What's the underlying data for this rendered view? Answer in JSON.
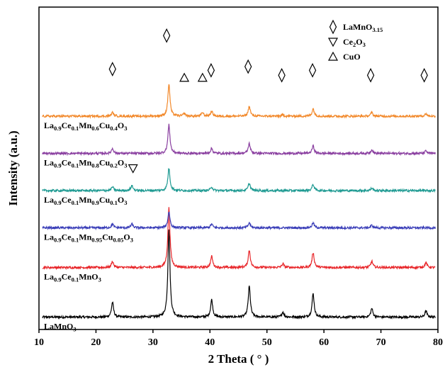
{
  "chart_data": {
    "type": "line",
    "xlabel": "2 Theta ( ° )",
    "ylabel": "Intensity (a.u.)",
    "xlim": [
      10,
      80
    ],
    "xticks": [
      "10",
      "20",
      "30",
      "40",
      "50",
      "60",
      "70",
      "80"
    ],
    "legend": [
      {
        "symbol": "diamond",
        "label": "LaMnO3.15"
      },
      {
        "symbol": "triangle-down",
        "label": "Ce2O3"
      },
      {
        "symbol": "triangle-up",
        "label": "CuO"
      }
    ],
    "series": [
      {
        "name": "LaMnO3",
        "label_parts": [
          {
            "t": "LaMnO",
            "sub": false
          },
          {
            "t": "3",
            "sub": true
          }
        ],
        "color": "#000000",
        "baseline": 1.0,
        "peaks": [
          {
            "x": 22.9,
            "h": 1.2
          },
          {
            "x": 32.8,
            "h": 7.0
          },
          {
            "x": 40.3,
            "h": 1.4
          },
          {
            "x": 46.9,
            "h": 2.5
          },
          {
            "x": 52.8,
            "h": 0.4
          },
          {
            "x": 58.1,
            "h": 1.9
          },
          {
            "x": 68.4,
            "h": 0.7
          },
          {
            "x": 77.9,
            "h": 0.5
          }
        ]
      },
      {
        "name": "La0.9Ce0.1MnO3",
        "label_parts": [
          {
            "t": "La",
            "sub": false
          },
          {
            "t": "0.9",
            "sub": true
          },
          {
            "t": "Ce",
            "sub": false
          },
          {
            "t": "0.1",
            "sub": true
          },
          {
            "t": "MnO",
            "sub": false
          },
          {
            "t": "3",
            "sub": true
          }
        ],
        "color": "#e8262a",
        "baseline": 5.0,
        "peaks": [
          {
            "x": 22.9,
            "h": 0.5
          },
          {
            "x": 32.8,
            "h": 4.8
          },
          {
            "x": 40.3,
            "h": 0.9
          },
          {
            "x": 46.9,
            "h": 1.4
          },
          {
            "x": 52.8,
            "h": 0.3
          },
          {
            "x": 58.1,
            "h": 1.2
          },
          {
            "x": 68.4,
            "h": 0.5
          },
          {
            "x": 77.9,
            "h": 0.4
          }
        ]
      },
      {
        "name": "La0.9Ce0.1Mn0.95Cu0.05O3",
        "label_parts": [
          {
            "t": "La",
            "sub": false
          },
          {
            "t": "0.9",
            "sub": true
          },
          {
            "t": "Ce",
            "sub": false
          },
          {
            "t": "0.1",
            "sub": true
          },
          {
            "t": "Mn",
            "sub": false
          },
          {
            "t": "0.95",
            "sub": true
          },
          {
            "t": "Cu",
            "sub": false
          },
          {
            "t": "0.05",
            "sub": true
          },
          {
            "t": "O",
            "sub": false
          },
          {
            "t": "3",
            "sub": true
          }
        ],
        "color": "#3a3eb8",
        "baseline": 8.2,
        "peaks": [
          {
            "x": 22.9,
            "h": 0.3
          },
          {
            "x": 26.3,
            "h": 0.3
          },
          {
            "x": 32.8,
            "h": 1.3
          },
          {
            "x": 40.3,
            "h": 0.3
          },
          {
            "x": 46.9,
            "h": 0.4
          },
          {
            "x": 58.1,
            "h": 0.4
          },
          {
            "x": 68.4,
            "h": 0.2
          }
        ]
      },
      {
        "name": "La0.9Ce0.1Mn0.9Cu0.1O3",
        "label_parts": [
          {
            "t": "La",
            "sub": false
          },
          {
            "t": "0.9",
            "sub": true
          },
          {
            "t": "Ce",
            "sub": false
          },
          {
            "t": "0.1",
            "sub": true
          },
          {
            "t": "Mn",
            "sub": false
          },
          {
            "t": "0.9",
            "sub": true
          },
          {
            "t": "Cu",
            "sub": false
          },
          {
            "t": "0.1",
            "sub": true
          },
          {
            "t": "O",
            "sub": false
          },
          {
            "t": "3",
            "sub": true
          }
        ],
        "color": "#1e9a92",
        "baseline": 11.2,
        "peaks": [
          {
            "x": 22.9,
            "h": 0.3
          },
          {
            "x": 26.3,
            "h": 0.4
          },
          {
            "x": 32.8,
            "h": 1.8
          },
          {
            "x": 40.3,
            "h": 0.3
          },
          {
            "x": 46.9,
            "h": 0.6
          },
          {
            "x": 58.1,
            "h": 0.5
          },
          {
            "x": 68.4,
            "h": 0.2
          }
        ]
      },
      {
        "name": "La0.9Ce0.1Mn0.8Cu0.2O3",
        "label_parts": [
          {
            "t": "La",
            "sub": false
          },
          {
            "t": "0.9",
            "sub": true
          },
          {
            "t": "Ce",
            "sub": false
          },
          {
            "t": "0.1",
            "sub": true
          },
          {
            "t": "Mn",
            "sub": false
          },
          {
            "t": "0.8",
            "sub": true
          },
          {
            "t": "Cu",
            "sub": false
          },
          {
            "t": "0.2",
            "sub": true
          },
          {
            "t": "O",
            "sub": false
          },
          {
            "t": "3",
            "sub": true
          }
        ],
        "color": "#8a3fa0",
        "baseline": 14.2,
        "peaks": [
          {
            "x": 22.9,
            "h": 0.4
          },
          {
            "x": 32.8,
            "h": 2.3
          },
          {
            "x": 40.3,
            "h": 0.4
          },
          {
            "x": 46.9,
            "h": 0.8
          },
          {
            "x": 58.1,
            "h": 0.6
          },
          {
            "x": 68.4,
            "h": 0.3
          },
          {
            "x": 77.9,
            "h": 0.2
          }
        ]
      },
      {
        "name": "La0.9Ce0.1Mn0.6Cu0.4O3",
        "label_parts": [
          {
            "t": "La",
            "sub": false
          },
          {
            "t": "0.9",
            "sub": true
          },
          {
            "t": "Ce",
            "sub": false
          },
          {
            "t": "0.1",
            "sub": true
          },
          {
            "t": "Mn",
            "sub": false
          },
          {
            "t": "0.6",
            "sub": true
          },
          {
            "t": "Cu",
            "sub": false
          },
          {
            "t": "0.4",
            "sub": true
          },
          {
            "t": "O",
            "sub": false
          },
          {
            "t": "3",
            "sub": true
          }
        ],
        "color": "#f2892b",
        "baseline": 17.2,
        "peaks": [
          {
            "x": 22.9,
            "h": 0.3
          },
          {
            "x": 32.8,
            "h": 2.6
          },
          {
            "x": 35.5,
            "h": 0.2
          },
          {
            "x": 38.7,
            "h": 0.3
          },
          {
            "x": 40.3,
            "h": 0.4
          },
          {
            "x": 46.9,
            "h": 0.8
          },
          {
            "x": 52.8,
            "h": 0.1
          },
          {
            "x": 58.1,
            "h": 0.6
          },
          {
            "x": 68.4,
            "h": 0.3
          },
          {
            "x": 77.9,
            "h": 0.2
          }
        ]
      }
    ],
    "phase_markers": [
      {
        "symbol": "diamond",
        "x": 22.9,
        "y": 21.0
      },
      {
        "symbol": "diamond",
        "x": 32.4,
        "y": 23.7
      },
      {
        "symbol": "triangle-up",
        "x": 35.5,
        "y": 20.3
      },
      {
        "symbol": "triangle-up",
        "x": 38.7,
        "y": 20.3
      },
      {
        "symbol": "diamond",
        "x": 40.2,
        "y": 20.9
      },
      {
        "symbol": "diamond",
        "x": 46.7,
        "y": 21.2
      },
      {
        "symbol": "diamond",
        "x": 52.6,
        "y": 20.5
      },
      {
        "symbol": "diamond",
        "x": 58.0,
        "y": 20.9
      },
      {
        "symbol": "diamond",
        "x": 68.2,
        "y": 20.5
      },
      {
        "symbol": "diamond",
        "x": 77.6,
        "y": 20.5
      },
      {
        "symbol": "triangle-down",
        "x": 26.5,
        "y": 13.0
      }
    ]
  }
}
